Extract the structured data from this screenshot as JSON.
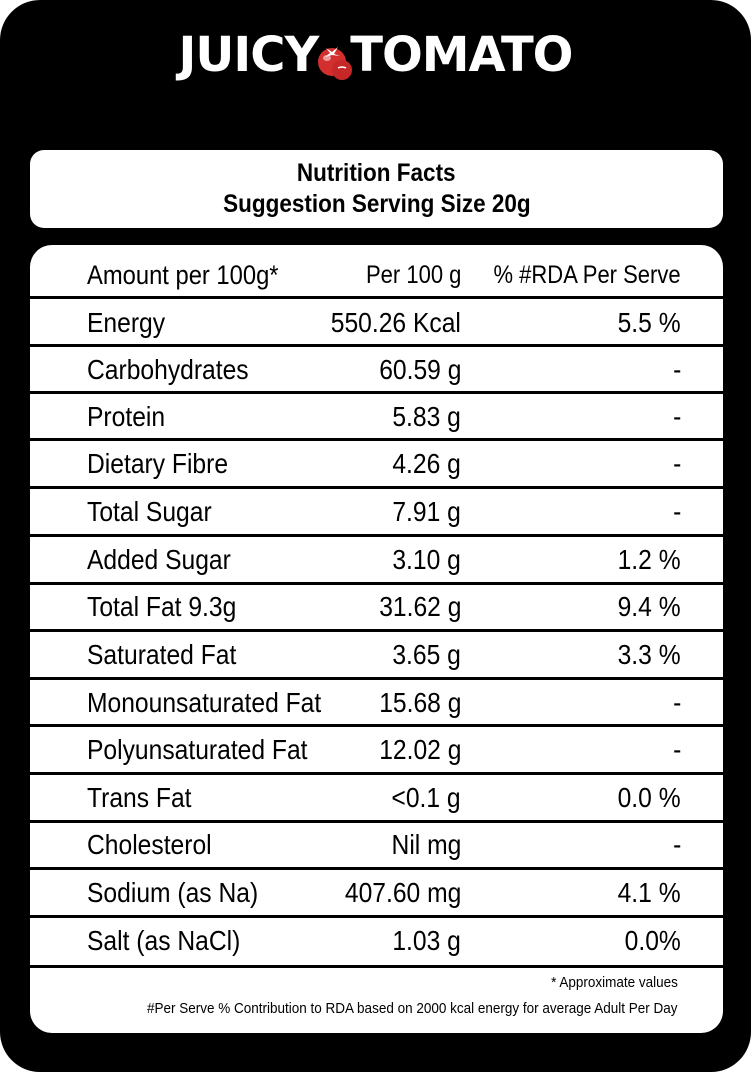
{
  "brand": {
    "word1": "JUICY",
    "word2": "TOMATO",
    "icon": "tomato-icon"
  },
  "heading": {
    "line1": "Nutrition Facts",
    "line2": "Suggestion Serving Size 20g"
  },
  "table": {
    "header": {
      "name": "Amount per 100g*",
      "value": "Per 100 g",
      "pct": "% #RDA Per Serve"
    },
    "rows": [
      {
        "name": "Energy",
        "value": "550.26 Kcal",
        "pct": "5.5 %"
      },
      {
        "name": "Carbohydrates",
        "value": "60.59 g",
        "pct": "-"
      },
      {
        "name": "Protein",
        "value": "5.83 g",
        "pct": "-"
      },
      {
        "name": "Dietary Fibre",
        "value": "4.26 g",
        "pct": "-"
      },
      {
        "name": "Total Sugar",
        "value": "7.91 g",
        "pct": "-"
      },
      {
        "name": "Added Sugar",
        "value": "3.10 g",
        "pct": "1.2 %"
      },
      {
        "name": "Total Fat 9.3g",
        "value": "31.62 g",
        "pct": "9.4 %"
      },
      {
        "name": "Saturated Fat",
        "value": "3.65 g",
        "pct": "3.3 %"
      },
      {
        "name": "Monounsaturated Fat",
        "value": "15.68 g",
        "pct": "-"
      },
      {
        "name": "Polyunsaturated Fat",
        "value": "12.02 g",
        "pct": "-"
      },
      {
        "name": "Trans Fat",
        "value": "<0.1 g",
        "pct": "0.0 %"
      },
      {
        "name": "Cholesterol",
        "value": "Nil mg",
        "pct": "-"
      },
      {
        "name": "Sodium (as Na)",
        "value": "407.60 mg",
        "pct": "4.1 %"
      },
      {
        "name": "Salt (as NaCl)",
        "value": "1.03 g",
        "pct": "0.0%"
      }
    ]
  },
  "footnotes": {
    "approx": "* Approximate values",
    "rda": "#Per Serve % Contribution to RDA based on 2000 kcal energy for average Adult Per Day"
  },
  "colors": {
    "background": "#000000",
    "panel": "#ffffff",
    "text": "#000000",
    "tomato": "#d32f2f"
  }
}
